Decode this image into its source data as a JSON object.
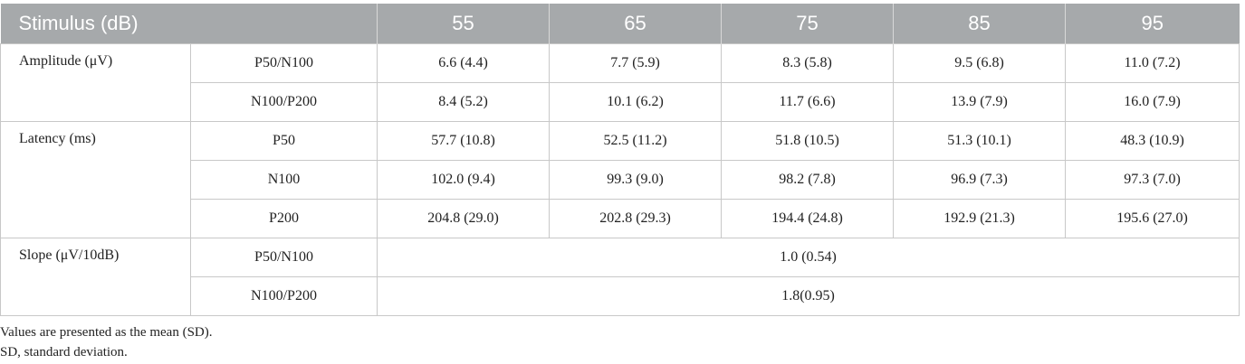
{
  "table": {
    "header": [
      "Stimulus (dB)",
      "55",
      "65",
      "75",
      "85",
      "95"
    ],
    "groups": [
      {
        "label": "Amplitude (μV)",
        "rows": [
          {
            "label": "P50/N100",
            "cells": [
              "6.6 (4.4)",
              "7.7 (5.9)",
              "8.3 (5.8)",
              "9.5 (6.8)",
              "11.0 (7.2)"
            ]
          },
          {
            "label": "N100/P200",
            "cells": [
              "8.4 (5.2)",
              "10.1 (6.2)",
              "11.7 (6.6)",
              "13.9 (7.9)",
              "16.0 (7.9)"
            ]
          }
        ]
      },
      {
        "label": "Latency (ms)",
        "rows": [
          {
            "label": "P50",
            "cells": [
              "57.7 (10.8)",
              "52.5 (11.2)",
              "51.8 (10.5)",
              "51.3 (10.1)",
              "48.3 (10.9)"
            ]
          },
          {
            "label": "N100",
            "cells": [
              "102.0 (9.4)",
              "99.3 (9.0)",
              "98.2 (7.8)",
              "96.9 (7.3)",
              "97.3 (7.0)"
            ]
          },
          {
            "label": "P200",
            "cells": [
              "204.8 (29.0)",
              "202.8 (29.3)",
              "194.4 (24.8)",
              "192.9 (21.3)",
              "195.6 (27.0)"
            ]
          }
        ]
      },
      {
        "label": "Slope (μV/10dB)",
        "rows": [
          {
            "label": "P50/N100",
            "cells": [
              "1.0 (0.54)"
            ]
          },
          {
            "label": "N100/P200",
            "cells": [
              "1.8(0.95)"
            ]
          }
        ]
      }
    ],
    "footnotes": [
      "Values are presented as the mean (SD).",
      "SD, standard deviation."
    ]
  }
}
